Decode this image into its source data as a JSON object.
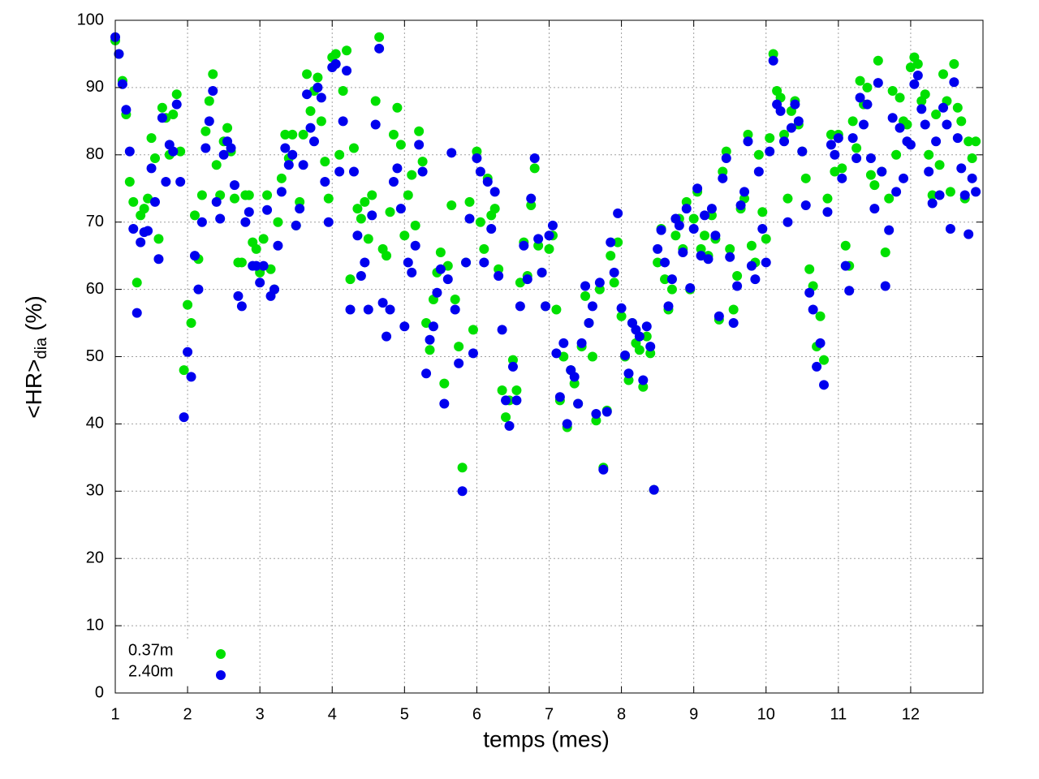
{
  "chart_data": {
    "type": "scatter",
    "xlabel": "temps (mes)",
    "ylabel": {
      "main": "<HR>",
      "sub": "dia",
      "unit": "(%)"
    },
    "xlim": [
      1,
      13
    ],
    "xticks": [
      1,
      2,
      3,
      4,
      5,
      6,
      7,
      8,
      9,
      10,
      11,
      12
    ],
    "ylim": [
      0,
      100
    ],
    "yticks": [
      0,
      10,
      20,
      30,
      40,
      50,
      60,
      70,
      80,
      90,
      100
    ],
    "grid": true,
    "legend": "bottom-left",
    "x": [
      1,
      1.05,
      1.1,
      1.15,
      1.2,
      1.25,
      1.3,
      1.35,
      1.4,
      1.45,
      1.5,
      1.55,
      1.6,
      1.65,
      1.7,
      1.75,
      1.8,
      1.85,
      1.9,
      1.95,
      2,
      2.05,
      2.1,
      2.15,
      2.2,
      2.25,
      2.3,
      2.35,
      2.4,
      2.45,
      2.5,
      2.55,
      2.6,
      2.65,
      2.7,
      2.75,
      2.8,
      2.85,
      2.9,
      2.95,
      3,
      3.05,
      3.1,
      3.15,
      3.2,
      3.25,
      3.3,
      3.35,
      3.4,
      3.45,
      3.5,
      3.55,
      3.6,
      3.65,
      3.7,
      3.75,
      3.8,
      3.85,
      3.9,
      3.95,
      4,
      4.05,
      4.1,
      4.15,
      4.2,
      4.25,
      4.3,
      4.35,
      4.4,
      4.45,
      4.5,
      4.55,
      4.6,
      4.65,
      4.7,
      4.75,
      4.8,
      4.85,
      4.9,
      4.95,
      5,
      5.05,
      5.1,
      5.15,
      5.2,
      5.25,
      5.3,
      5.35,
      5.4,
      5.45,
      5.5,
      5.55,
      5.6,
      5.65,
      5.7,
      5.75,
      5.8,
      5.85,
      5.9,
      5.95,
      6,
      6.05,
      6.1,
      6.15,
      6.2,
      6.25,
      6.3,
      6.35,
      6.4,
      6.45,
      6.5,
      6.55,
      6.6,
      6.65,
      6.7,
      6.75,
      6.8,
      6.85,
      6.9,
      6.95,
      7,
      7.05,
      7.1,
      7.15,
      7.2,
      7.25,
      7.3,
      7.35,
      7.4,
      7.45,
      7.5,
      7.55,
      7.6,
      7.65,
      7.7,
      7.75,
      7.8,
      7.85,
      7.9,
      7.95,
      8,
      8.05,
      8.1,
      8.15,
      8.2,
      8.25,
      8.3,
      8.35,
      8.4,
      8.45,
      8.5,
      8.55,
      8.6,
      8.65,
      8.7,
      8.75,
      8.8,
      8.85,
      8.9,
      8.95,
      9,
      9.05,
      9.1,
      9.15,
      9.2,
      9.25,
      9.3,
      9.35,
      9.4,
      9.45,
      9.5,
      9.55,
      9.6,
      9.65,
      9.7,
      9.75,
      9.8,
      9.85,
      9.9,
      9.95,
      10,
      10.05,
      10.1,
      10.15,
      10.2,
      10.25,
      10.3,
      10.35,
      10.4,
      10.45,
      10.5,
      10.55,
      10.6,
      10.65,
      10.7,
      10.75,
      10.8,
      10.85,
      10.9,
      10.95,
      11,
      11.05,
      11.1,
      11.15,
      11.2,
      11.25,
      11.3,
      11.35,
      11.4,
      11.45,
      11.5,
      11.55,
      11.6,
      11.65,
      11.7,
      11.75,
      11.8,
      11.85,
      11.9,
      11.95,
      12,
      12.05,
      12.1,
      12.15,
      12.2,
      12.25,
      12.3,
      12.35,
      12.4,
      12.45,
      12.5,
      12.55,
      12.6,
      12.65,
      12.7,
      12.75,
      12.8,
      12.85,
      12.9
    ],
    "series": [
      {
        "name": "0.37m",
        "color": "#00e000",
        "values": [
          97,
          95,
          91,
          86,
          76,
          73,
          61,
          71,
          72,
          73.5,
          82.5,
          79.5,
          67.5,
          87,
          85.5,
          80,
          86,
          89,
          80.5,
          48,
          57.7,
          55,
          71,
          64.5,
          74,
          83.5,
          88,
          92,
          78.5,
          74,
          82,
          84,
          80.5,
          73.5,
          64,
          64,
          74,
          74,
          67,
          66,
          62.5,
          67.5,
          74,
          63,
          60,
          70,
          76.5,
          83,
          79.5,
          83,
          69.5,
          73,
          83,
          92,
          86.5,
          89.5,
          91.5,
          85,
          79,
          73.5,
          94.5,
          95,
          80,
          89.5,
          95.5,
          61.5,
          81,
          72,
          70.5,
          73,
          67.5,
          74,
          88,
          97.5,
          66,
          65,
          71.5,
          83,
          87,
          81.5,
          68,
          74,
          77,
          69.5,
          83.5,
          79,
          55,
          51,
          58.5,
          62.5,
          65.5,
          46,
          63.5,
          72.5,
          58.5,
          51.5,
          33.5,
          64,
          73,
          54,
          80.5,
          70,
          66,
          76.5,
          71,
          72,
          63,
          45,
          41,
          43.5,
          49.5,
          45,
          61,
          67,
          62,
          72.5,
          78,
          66.5,
          62.5,
          57.5,
          66,
          68,
          57,
          43.5,
          50,
          39.5,
          48,
          46,
          43,
          51.5,
          59,
          55,
          50,
          40.5,
          60,
          33.5,
          42,
          65,
          61,
          67,
          56,
          50,
          46.5,
          55,
          52,
          51,
          45.5,
          53,
          50.5,
          30.2,
          64,
          69,
          61.5,
          57,
          60,
          68,
          70.5,
          66,
          73,
          60,
          70.5,
          74.5,
          66,
          68,
          65,
          71,
          67.5,
          55.5,
          77.5,
          80.5,
          66,
          57,
          62,
          72,
          73.5,
          83,
          66.5,
          64,
          80,
          71.5,
          67.5,
          82.5,
          95,
          89.5,
          88.5,
          83,
          73.5,
          86.5,
          88,
          84.5,
          80.5,
          76.5,
          63,
          60.5,
          51.5,
          56,
          49.5,
          73.5,
          83,
          77.5,
          83,
          78,
          66.5,
          63.5,
          85,
          81,
          91,
          87.5,
          90,
          77,
          75.5,
          94,
          77.5,
          65.5,
          73.5,
          89.5,
          80,
          88.5,
          85,
          84.5,
          93,
          94.5,
          93.5,
          88,
          89,
          80,
          74,
          86,
          78.5,
          92,
          88,
          74.5,
          93.5,
          87,
          85,
          73.5,
          82,
          79.5,
          82
        ]
      },
      {
        "name": "2.40m",
        "color": "#0000ee",
        "values": [
          97.5,
          95,
          90.5,
          86.7,
          80.5,
          69,
          56.5,
          67,
          68.5,
          68.7,
          78,
          73,
          64.5,
          85.5,
          76,
          81.5,
          80.5,
          87.5,
          76,
          41,
          50.7,
          47,
          65,
          60,
          70,
          81,
          85,
          89.5,
          73,
          70.5,
          80,
          82,
          81,
          75.5,
          59,
          57.5,
          70,
          71.5,
          63.5,
          63.5,
          61,
          63.5,
          71.8,
          59,
          60,
          66.5,
          74.5,
          81,
          78.5,
          80,
          69.5,
          72,
          78.5,
          89,
          84,
          82,
          90,
          88.5,
          76,
          70,
          93,
          93.5,
          77.5,
          85,
          92.5,
          57,
          77.5,
          68,
          62,
          64,
          57,
          71,
          84.5,
          95.8,
          58,
          53,
          57,
          76,
          78,
          72,
          54.5,
          64,
          62.5,
          66.5,
          81.5,
          77.5,
          47.5,
          52.5,
          54.5,
          59.5,
          63,
          43,
          61.5,
          80.3,
          57,
          49,
          30,
          64,
          70.5,
          50.5,
          79.5,
          77.5,
          64,
          76,
          69,
          74.5,
          62,
          54,
          43.5,
          39.7,
          48.5,
          43.5,
          57.5,
          66.5,
          61.5,
          73.5,
          79.5,
          67.5,
          62.5,
          57.5,
          68,
          69.5,
          50.5,
          44,
          52,
          40,
          48,
          47,
          43,
          52,
          60.5,
          55,
          57.5,
          41.5,
          61,
          33.2,
          41.8,
          67,
          62.5,
          71.3,
          57.2,
          50.2,
          47.5,
          55,
          54,
          53,
          46.5,
          54.5,
          51.5,
          30.2,
          66,
          68.8,
          64,
          57.5,
          61.5,
          70.5,
          69.5,
          65.5,
          72,
          60.2,
          69,
          75,
          65,
          71,
          64.5,
          72,
          68,
          56,
          76.5,
          79.5,
          64.8,
          55,
          60.5,
          72.5,
          74.5,
          82,
          63.5,
          61.5,
          77.5,
          69,
          64,
          80.5,
          94,
          87.5,
          86.5,
          82,
          70,
          84,
          87.5,
          85,
          80.5,
          72.5,
          59.5,
          57,
          48.5,
          52,
          45.8,
          71.5,
          81.5,
          80,
          82.5,
          76.5,
          63.5,
          59.8,
          82.5,
          79.5,
          88.5,
          84.5,
          87.5,
          79.5,
          72,
          90.7,
          77.5,
          60.5,
          68.8,
          85.5,
          74.5,
          84,
          76.5,
          82,
          81.5,
          90.5,
          91.8,
          86.8,
          84.5,
          77.5,
          72.8,
          82,
          74,
          87,
          84.5,
          69,
          90.8,
          82.5,
          78,
          74,
          68.2,
          76.5,
          74.5
        ]
      }
    ]
  }
}
